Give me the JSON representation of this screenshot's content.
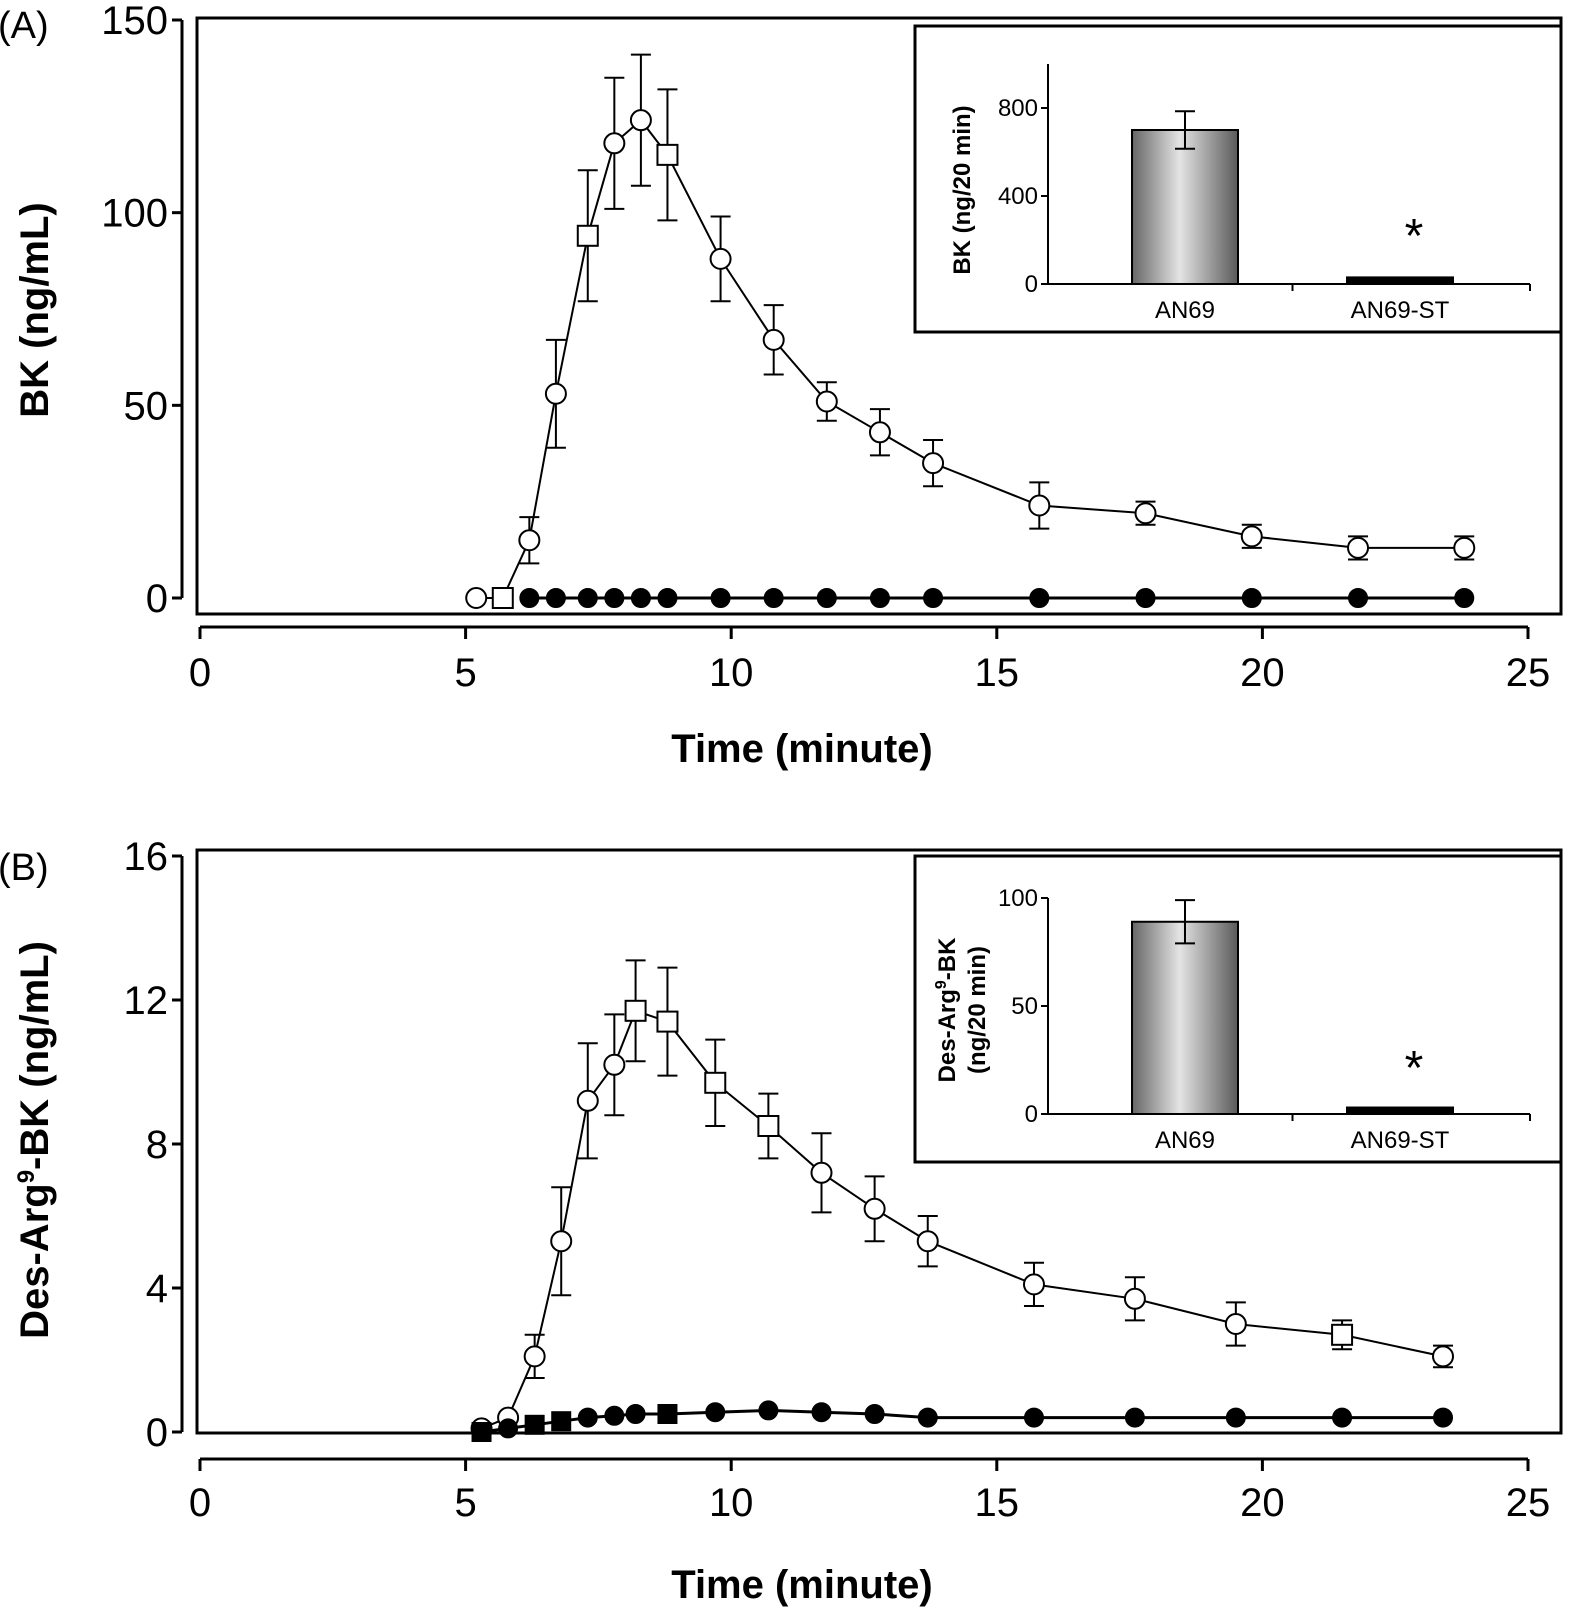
{
  "chart_data": [
    {
      "panel": "(A)",
      "type": "line",
      "xlabel": "Time (minute)",
      "ylabel": "BK (ng/mL)",
      "xlim": [
        0,
        25
      ],
      "ylim": [
        0,
        150
      ],
      "xticks": [
        "0",
        "5",
        "10",
        "15",
        "20",
        "25"
      ],
      "yticks": [
        "0",
        "50",
        "100",
        "150"
      ],
      "series": [
        {
          "style": "open",
          "points": [
            {
              "x": 5.2,
              "y": 0,
              "err": 0,
              "marker": "circle"
            },
            {
              "x": 5.7,
              "y": 0,
              "err": 0,
              "marker": "square"
            },
            {
              "x": 6.2,
              "y": 15,
              "err": 6,
              "marker": "circle"
            },
            {
              "x": 6.7,
              "y": 53,
              "err": 14,
              "marker": "circle"
            },
            {
              "x": 7.3,
              "y": 94,
              "err": 17,
              "marker": "square"
            },
            {
              "x": 7.8,
              "y": 118,
              "err": 17,
              "marker": "circle"
            },
            {
              "x": 8.3,
              "y": 124,
              "err": 17,
              "marker": "circle"
            },
            {
              "x": 8.8,
              "y": 115,
              "err": 17,
              "marker": "square"
            },
            {
              "x": 9.8,
              "y": 88,
              "err": 11,
              "marker": "circle"
            },
            {
              "x": 10.8,
              "y": 67,
              "err": 9,
              "marker": "circle"
            },
            {
              "x": 11.8,
              "y": 51,
              "err": 5,
              "marker": "circle"
            },
            {
              "x": 12.8,
              "y": 43,
              "err": 6,
              "marker": "circle"
            },
            {
              "x": 13.8,
              "y": 35,
              "err": 6,
              "marker": "circle"
            },
            {
              "x": 15.8,
              "y": 24,
              "err": 6,
              "marker": "circle"
            },
            {
              "x": 17.8,
              "y": 22,
              "err": 3,
              "marker": "circle"
            },
            {
              "x": 19.8,
              "y": 16,
              "err": 3,
              "marker": "circle"
            },
            {
              "x": 21.8,
              "y": 13,
              "err": 3,
              "marker": "circle"
            },
            {
              "x": 23.8,
              "y": 13,
              "err": 3,
              "marker": "circle"
            }
          ]
        },
        {
          "style": "filled",
          "points": [
            {
              "x": 6.2,
              "y": 0
            },
            {
              "x": 6.7,
              "y": 0
            },
            {
              "x": 7.3,
              "y": 0
            },
            {
              "x": 7.8,
              "y": 0
            },
            {
              "x": 8.3,
              "y": 0
            },
            {
              "x": 8.8,
              "y": 0
            },
            {
              "x": 9.8,
              "y": 0
            },
            {
              "x": 10.8,
              "y": 0
            },
            {
              "x": 11.8,
              "y": 0
            },
            {
              "x": 12.8,
              "y": 0
            },
            {
              "x": 13.8,
              "y": 0
            },
            {
              "x": 15.8,
              "y": 0
            },
            {
              "x": 17.8,
              "y": 0
            },
            {
              "x": 19.8,
              "y": 0
            },
            {
              "x": 21.8,
              "y": 0
            },
            {
              "x": 23.8,
              "y": 0
            }
          ]
        }
      ],
      "inset": {
        "type": "bar",
        "ylabel": [
          "BK (ng/20 min)"
        ],
        "ylim": [
          0,
          1000
        ],
        "yticks": [
          "0",
          "400",
          "800"
        ],
        "categories": [
          "AN69",
          "AN69-ST"
        ],
        "values": [
          700,
          30
        ],
        "errors": [
          85,
          0
        ],
        "annotation": "*"
      }
    },
    {
      "panel": "(B)",
      "type": "line",
      "xlabel": "Time (minute)",
      "ylabel_main": "Des-Arg",
      "ylabel_sup": "9",
      "ylabel_rest": "-BK (ng/mL)",
      "xlim": [
        0,
        25
      ],
      "ylim": [
        0,
        16
      ],
      "xticks": [
        "0",
        "5",
        "10",
        "15",
        "20",
        "25"
      ],
      "yticks": [
        "0",
        "4",
        "8",
        "12",
        "16"
      ],
      "series": [
        {
          "style": "open",
          "points": [
            {
              "x": 5.3,
              "y": 0.1,
              "err": 0,
              "marker": "circle"
            },
            {
              "x": 5.8,
              "y": 0.4,
              "err": 0,
              "marker": "circle"
            },
            {
              "x": 6.3,
              "y": 2.1,
              "err": 0.6,
              "marker": "circle"
            },
            {
              "x": 6.8,
              "y": 5.3,
              "err": 1.5,
              "marker": "circle"
            },
            {
              "x": 7.3,
              "y": 9.2,
              "err": 1.6,
              "marker": "circle"
            },
            {
              "x": 7.8,
              "y": 10.2,
              "err": 1.4,
              "marker": "circle"
            },
            {
              "x": 8.2,
              "y": 11.7,
              "err": 1.4,
              "marker": "square"
            },
            {
              "x": 8.8,
              "y": 11.4,
              "err": 1.5,
              "marker": "square"
            },
            {
              "x": 9.7,
              "y": 9.7,
              "err": 1.2,
              "marker": "square"
            },
            {
              "x": 10.7,
              "y": 8.5,
              "err": 0.9,
              "marker": "square"
            },
            {
              "x": 11.7,
              "y": 7.2,
              "err": 1.1,
              "marker": "circle"
            },
            {
              "x": 12.7,
              "y": 6.2,
              "err": 0.9,
              "marker": "circle"
            },
            {
              "x": 13.7,
              "y": 5.3,
              "err": 0.7,
              "marker": "circle"
            },
            {
              "x": 15.7,
              "y": 4.1,
              "err": 0.6,
              "marker": "circle"
            },
            {
              "x": 17.6,
              "y": 3.7,
              "err": 0.6,
              "marker": "circle"
            },
            {
              "x": 19.5,
              "y": 3.0,
              "err": 0.6,
              "marker": "circle"
            },
            {
              "x": 21.5,
              "y": 2.7,
              "err": 0.4,
              "marker": "square"
            },
            {
              "x": 23.4,
              "y": 2.1,
              "err": 0.3,
              "marker": "circle"
            }
          ]
        },
        {
          "style": "filled",
          "points": [
            {
              "x": 5.3,
              "y": 0,
              "marker": "square"
            },
            {
              "x": 5.8,
              "y": 0.1,
              "marker": "circle"
            },
            {
              "x": 6.3,
              "y": 0.2,
              "marker": "square"
            },
            {
              "x": 6.8,
              "y": 0.3,
              "marker": "square"
            },
            {
              "x": 7.3,
              "y": 0.4,
              "marker": "circle"
            },
            {
              "x": 7.8,
              "y": 0.45,
              "marker": "circle"
            },
            {
              "x": 8.2,
              "y": 0.5,
              "marker": "circle"
            },
            {
              "x": 8.8,
              "y": 0.5,
              "marker": "square"
            },
            {
              "x": 9.7,
              "y": 0.55,
              "marker": "circle"
            },
            {
              "x": 10.7,
              "y": 0.6,
              "marker": "circle"
            },
            {
              "x": 11.7,
              "y": 0.55,
              "marker": "circle"
            },
            {
              "x": 12.7,
              "y": 0.5,
              "marker": "circle"
            },
            {
              "x": 13.7,
              "y": 0.4,
              "marker": "circle"
            },
            {
              "x": 15.7,
              "y": 0.4,
              "marker": "circle"
            },
            {
              "x": 17.6,
              "y": 0.4,
              "marker": "circle"
            },
            {
              "x": 19.5,
              "y": 0.4,
              "marker": "circle"
            },
            {
              "x": 21.5,
              "y": 0.4,
              "marker": "circle"
            },
            {
              "x": 23.4,
              "y": 0.4,
              "marker": "circle"
            }
          ]
        }
      ],
      "inset": {
        "type": "bar",
        "ylabel_main": "Des-Arg",
        "ylabel_sup": "9",
        "ylabel_rest": "-BK",
        "ylabel_line2": "(ng/20 min)",
        "ylim": [
          0,
          100
        ],
        "yticks": [
          "0",
          "50",
          "100"
        ],
        "categories": [
          "AN69",
          "AN69-ST"
        ],
        "values": [
          89,
          3
        ],
        "errors": [
          10,
          0
        ],
        "annotation": "*"
      }
    }
  ]
}
